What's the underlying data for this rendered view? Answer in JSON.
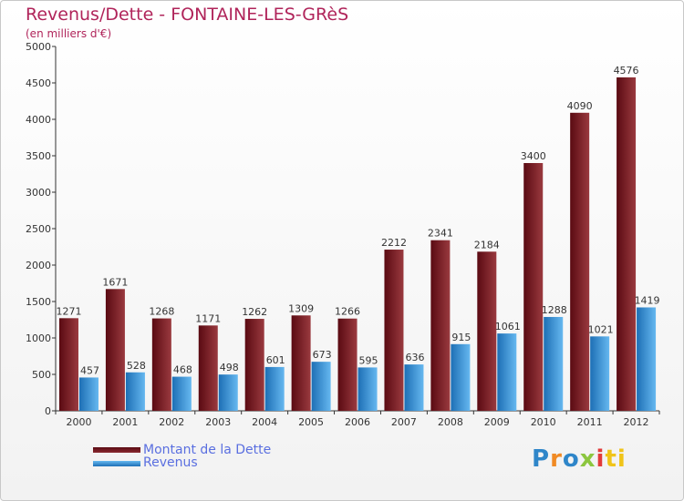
{
  "title": "Revenus/Dette - FONTAINE-LES-GRèS",
  "subtitle": "(en milliers d'€)",
  "logo": [
    "P",
    "r",
    "o",
    "x",
    "i",
    "ti"
  ],
  "colors": {
    "debt_dark": "#5a0a12",
    "debt_light": "#9a3a3f",
    "revenue_dark": "#1d6fb5",
    "revenue_light": "#66b8f0",
    "title": "#b0245a",
    "legend_text": "#5a6fe0"
  },
  "legend": [
    {
      "label": "Montant de la Dette",
      "series": 0
    },
    {
      "label": "Revenus",
      "series": 1
    }
  ],
  "chart_data": {
    "type": "bar",
    "title": "Revenus/Dette - FONTAINE-LES-GRèS",
    "ylabel": "(en milliers d'€)",
    "categories": [
      "2000",
      "2001",
      "2002",
      "2003",
      "2004",
      "2005",
      "2006",
      "2007",
      "2008",
      "2009",
      "2010",
      "2011",
      "2012"
    ],
    "series": [
      {
        "name": "Montant de la Dette",
        "values": [
          1271,
          1671,
          1268,
          1171,
          1262,
          1309,
          1266,
          2212,
          2341,
          2184,
          3400,
          4090,
          4576
        ]
      },
      {
        "name": "Revenus",
        "values": [
          457,
          528,
          468,
          498,
          601,
          673,
          595,
          636,
          915,
          1061,
          1288,
          1021,
          1419
        ]
      }
    ],
    "ylim": [
      0,
      5000
    ],
    "yticks": [
      0,
      500,
      1000,
      1500,
      2000,
      2500,
      3000,
      3500,
      4000,
      4500,
      5000
    ],
    "grid": false,
    "legend_position": "bottom-left"
  }
}
